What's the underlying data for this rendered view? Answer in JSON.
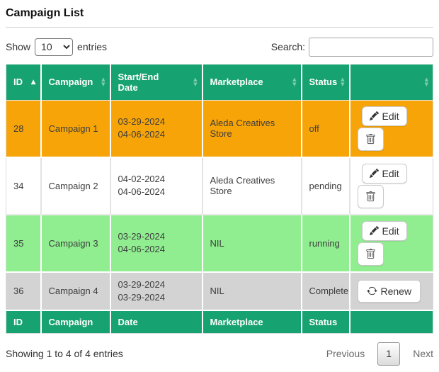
{
  "page": {
    "title": "Campaign List"
  },
  "controls": {
    "show_label": "Show",
    "entries_label": "entries",
    "page_length": "10",
    "search_label": "Search:",
    "search_value": ""
  },
  "table": {
    "headers": [
      {
        "label": "ID",
        "sort": "asc"
      },
      {
        "label": "Campaign",
        "sort": "both"
      },
      {
        "label": "Start/End Date",
        "sort": "both"
      },
      {
        "label": "Marketplace",
        "sort": "both"
      },
      {
        "label": "Status",
        "sort": "both"
      },
      {
        "label": "",
        "sort": "both"
      }
    ],
    "rows": [
      {
        "id": "28",
        "campaign": "Campaign 1",
        "start_date": "03-29-2024",
        "end_date": "04-06-2024",
        "marketplace": "Aleda Creatives Store",
        "status": "off",
        "color": "orange",
        "actions": [
          "edit",
          "delete"
        ]
      },
      {
        "id": "34",
        "campaign": "Campaign 2",
        "start_date": "04-02-2024",
        "end_date": "04-06-2024",
        "marketplace": "Aleda Creatives Store",
        "status": "pending",
        "color": "white",
        "actions": [
          "edit",
          "delete"
        ]
      },
      {
        "id": "35",
        "campaign": "Campaign 3",
        "start_date": "03-29-2024",
        "end_date": "04-06-2024",
        "marketplace": "NIL",
        "status": "running",
        "color": "green",
        "actions": [
          "edit",
          "delete"
        ]
      },
      {
        "id": "36",
        "campaign": "Campaign 4",
        "start_date": "03-29-2024",
        "end_date": "03-29-2024",
        "marketplace": "NIL",
        "status": "Complete",
        "color": "gray",
        "actions": [
          "renew"
        ]
      }
    ],
    "footers": [
      "ID",
      "Campaign",
      "Date",
      "Marketplace",
      "Status",
      ""
    ]
  },
  "buttons": {
    "edit": "Edit",
    "renew": "Renew"
  },
  "footer_bar": {
    "info": "Showing 1 to 4 of 4 entries",
    "previous": "Previous",
    "page": "1",
    "next": "Next"
  },
  "colors": {
    "header_green": "#17a271",
    "row_orange": "#f7a408",
    "row_light_green": "#90ee90",
    "row_gray": "#d3d3d3",
    "header_text": "#ffffff"
  },
  "icons": {
    "pencil": "pencil-icon",
    "trash": "trash-icon",
    "refresh": "refresh-icon",
    "sort": "sort-arrows-icon"
  }
}
